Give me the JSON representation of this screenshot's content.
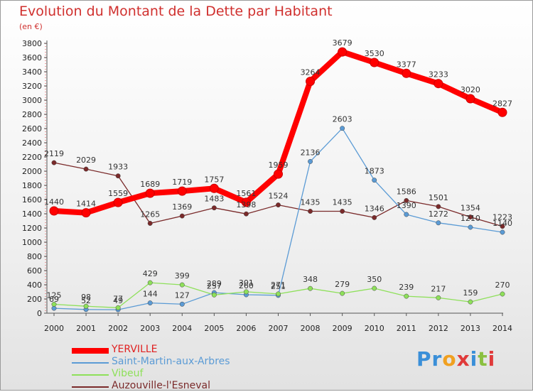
{
  "title": "Evolution du Montant de la Dette par Habitant",
  "subtitle": "(en €)",
  "logo": "Proxiti",
  "chart_data": {
    "type": "line",
    "x": [
      "2000",
      "2001",
      "2002",
      "2003",
      "2004",
      "2005",
      "2006",
      "2007",
      "2008",
      "2009",
      "2010",
      "2011",
      "2012",
      "2013",
      "2014"
    ],
    "ylim": [
      0,
      3800
    ],
    "yticks": [
      0,
      200,
      400,
      600,
      800,
      1000,
      1200,
      1400,
      1600,
      1800,
      2000,
      2200,
      2400,
      2600,
      2800,
      3000,
      3200,
      3400,
      3600,
      3800
    ],
    "grid": false,
    "legend_placement": "bottom-left",
    "series": [
      {
        "name": "YERVILLE",
        "color": "#ff0000",
        "values": [
          1440,
          1414,
          1559,
          1689,
          1719,
          1757,
          1561,
          1959,
          3264,
          3679,
          3530,
          3377,
          3233,
          3020,
          2827
        ]
      },
      {
        "name": "Saint-Martin-aux-Arbres",
        "color": "#5b9bd5",
        "values": [
          69,
          52,
          49,
          144,
          127,
          289,
          260,
          251,
          2136,
          2603,
          1873,
          1390,
          1272,
          1210,
          1140
        ]
      },
      {
        "name": "Vibeuf",
        "color": "#8ee05a",
        "values": [
          125,
          98,
          77,
          429,
          399,
          257,
          301,
          271,
          348,
          279,
          350,
          239,
          217,
          159,
          270
        ]
      },
      {
        "name": "Auzouville-l'Esneval",
        "color": "#7a2a2a",
        "values": [
          2119,
          2029,
          1933,
          1265,
          1369,
          1483,
          1398,
          1524,
          1435,
          1435,
          1346,
          1586,
          1501,
          1354,
          1223
        ]
      }
    ]
  }
}
